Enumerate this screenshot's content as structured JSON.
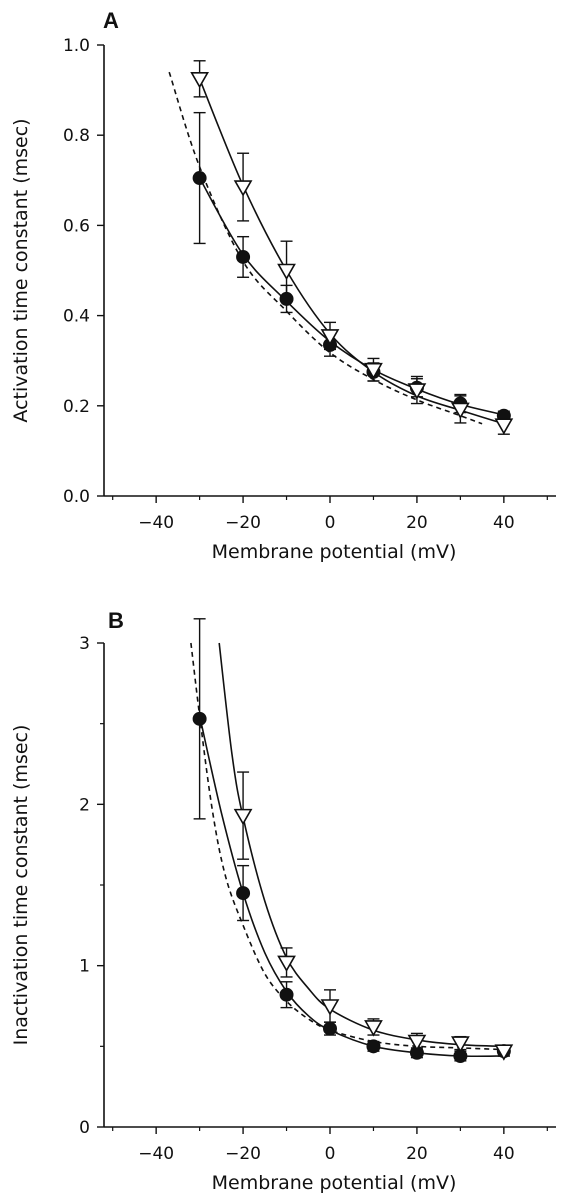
{
  "chart_data": [
    {
      "panel_label": "A",
      "type": "scatter",
      "xlabel": "Membrane potential (mV)",
      "ylabel": "Activation time constant (msec)",
      "xlim": [
        -52,
        52
      ],
      "ylim": [
        0.0,
        1.0
      ],
      "x_ticks": [
        -40,
        -20,
        0,
        20,
        40
      ],
      "x_tick_labels": [
        "-40",
        "-20",
        "0",
        "20",
        "40"
      ],
      "y_ticks": [
        0.0,
        0.2,
        0.4,
        0.6,
        0.8,
        1.0
      ],
      "y_tick_labels": [
        "0.0",
        "0.2",
        "0.4",
        "0.6",
        "0.8",
        "1.0"
      ],
      "grid": false,
      "series": [
        {
          "marker": "filled-circle",
          "x": [
            -30,
            -20,
            -10,
            0,
            10,
            20,
            30,
            40
          ],
          "y": [
            0.705,
            0.53,
            0.437,
            0.335,
            0.275,
            0.24,
            0.205,
            0.178
          ],
          "err_low": [
            0.145,
            0.045,
            0.03,
            0.025,
            0.02,
            0.02,
            0.02,
            0.01
          ],
          "err_high": [
            0.145,
            0.045,
            0.03,
            0.025,
            0.02,
            0.02,
            0.02,
            0.01
          ],
          "fit": {
            "style": "solid",
            "x_from": -30,
            "x_to": 40,
            "y": [
              0.705,
              0.535,
              0.432,
              0.343,
              0.28,
              0.237,
              0.203,
              0.18
            ]
          }
        },
        {
          "marker": "open-triangle-down",
          "x": [
            -30,
            -20,
            -10,
            0,
            10,
            20,
            30,
            40
          ],
          "y": [
            0.925,
            0.685,
            0.5,
            0.355,
            0.28,
            0.235,
            0.192,
            0.157
          ],
          "err_low": [
            0.04,
            0.075,
            0.065,
            0.03,
            0.025,
            0.03,
            0.03,
            0.02
          ],
          "err_high": [
            0.04,
            0.075,
            0.065,
            0.03,
            0.025,
            0.03,
            0.03,
            0.02
          ],
          "fit": {
            "style": "solid",
            "x_from": -30,
            "x_to": 40,
            "y": [
              0.925,
              0.688,
              0.5,
              0.36,
              0.275,
              0.222,
              0.19,
              0.16
            ]
          }
        },
        {
          "line_only": true,
          "fit": {
            "style": "dashed",
            "x_from": -37,
            "x_to": 35,
            "x": [
              -37,
              -30,
              -20,
              -10,
              0,
              10,
              20,
              30,
              35
            ],
            "y": [
              0.94,
              0.73,
              0.52,
              0.41,
              0.318,
              0.258,
              0.213,
              0.178,
              0.16
            ]
          }
        }
      ]
    },
    {
      "panel_label": "B",
      "type": "scatter",
      "xlabel": "Membrane potential (mV)",
      "ylabel": "Inactivation time constant (msec)",
      "xlim": [
        -52,
        52
      ],
      "ylim": [
        0,
        3
      ],
      "x_ticks": [
        -40,
        -20,
        0,
        20,
        40
      ],
      "x_tick_labels": [
        "-40",
        "-20",
        "0",
        "20",
        "40"
      ],
      "y_ticks": [
        0,
        1,
        2,
        3
      ],
      "y_tick_labels": [
        "0",
        "1",
        "2",
        "3"
      ],
      "grid": false,
      "series": [
        {
          "marker": "filled-circle",
          "x": [
            -30,
            -20,
            -10,
            0,
            10,
            20,
            30,
            40
          ],
          "y": [
            2.53,
            1.45,
            0.82,
            0.61,
            0.5,
            0.46,
            0.44,
            0.47
          ],
          "err_low": [
            0.62,
            0.17,
            0.08,
            0.04,
            0.03,
            0.03,
            0.03,
            0.03
          ],
          "err_high": [
            0.62,
            0.17,
            0.08,
            0.04,
            0.03,
            0.03,
            0.03,
            0.03
          ],
          "fit": {
            "style": "solid",
            "x_from": -30,
            "x_to": 40,
            "x": [
              -30,
              -25,
              -20,
              -15,
              -10,
              -5,
              0,
              10,
              20,
              30,
              40
            ],
            "y": [
              2.55,
              1.95,
              1.45,
              1.08,
              0.84,
              0.69,
              0.6,
              0.5,
              0.46,
              0.44,
              0.44
            ]
          }
        },
        {
          "marker": "open-triangle-down",
          "x": [
            -20,
            -10,
            0,
            10,
            20,
            30,
            40
          ],
          "y": [
            1.93,
            1.02,
            0.75,
            0.62,
            0.53,
            0.52,
            0.47
          ],
          "err_low": [
            0.27,
            0.09,
            0.1,
            0.05,
            0.05,
            0.04,
            0.03
          ],
          "err_high": [
            0.27,
            0.09,
            0.1,
            0.05,
            0.05,
            0.04,
            0.03
          ],
          "fit": {
            "style": "solid",
            "x_from": -25.5,
            "x_to": 40,
            "x": [
              -25.5,
              -22.5,
              -20,
              -15,
              -10,
              -5,
              0,
              10,
              20,
              30,
              40
            ],
            "y": [
              3.0,
              2.3,
              1.92,
              1.4,
              1.05,
              0.86,
              0.73,
              0.6,
              0.54,
              0.51,
              0.5
            ]
          }
        },
        {
          "line_only": true,
          "fit": {
            "style": "dashed",
            "x_from": -32,
            "x_to": 40,
            "x": [
              -32,
              -30,
              -27,
              -24,
              -20,
              -15,
              -10,
              -5,
              0,
              10,
              20,
              30,
              40
            ],
            "y": [
              3.0,
              2.55,
              1.95,
              1.55,
              1.25,
              0.95,
              0.78,
              0.67,
              0.6,
              0.53,
              0.5,
              0.49,
              0.48
            ]
          }
        }
      ]
    }
  ]
}
